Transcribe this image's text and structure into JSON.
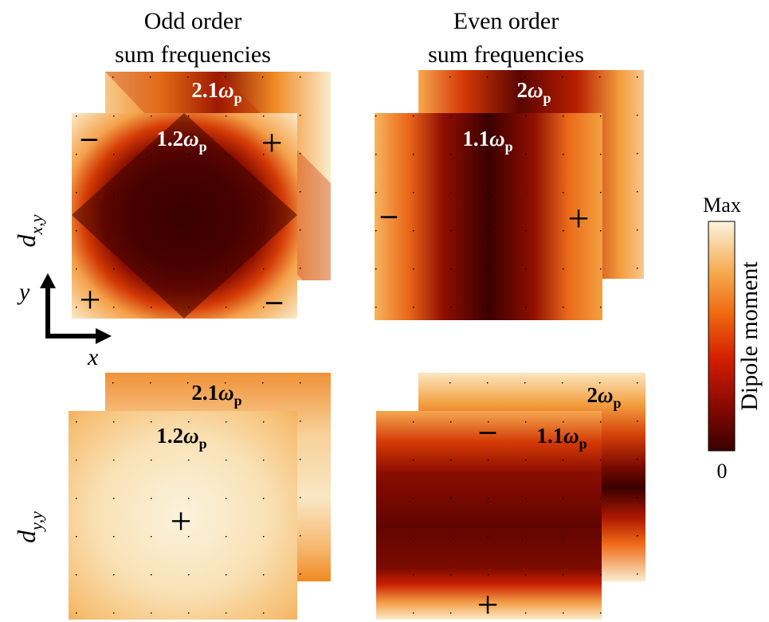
{
  "columns": {
    "odd": {
      "line1": "Odd order",
      "line2": "sum frequencies"
    },
    "even": {
      "line1": "Even order",
      "line2": "sum frequencies"
    }
  },
  "rows": {
    "top": {
      "symbol": "d",
      "subscript": "x,y"
    },
    "bottom": {
      "symbol": "d",
      "subscript": "y,y"
    }
  },
  "axes": {
    "x": "x",
    "y": "y"
  },
  "panels": {
    "top_odd_back": {
      "coef": "2.1",
      "omega": "ω",
      "sub": "p"
    },
    "top_odd_front": {
      "coef": "1.2",
      "omega": "ω",
      "sub": "p"
    },
    "top_even_back": {
      "coef": "2",
      "omega": "ω",
      "sub": "p"
    },
    "top_even_front": {
      "coef": "1.1",
      "omega": "ω",
      "sub": "p"
    },
    "bottom_odd_back": {
      "coef": "2.1",
      "omega": "ω",
      "sub": "p"
    },
    "bottom_odd_front": {
      "coef": "1.2",
      "omega": "ω",
      "sub": "p"
    },
    "bottom_even_back": {
      "coef": "2",
      "omega": "ω",
      "sub": "p"
    },
    "bottom_even_front": {
      "coef": "1.1",
      "omega": "ω",
      "sub": "p"
    }
  },
  "signs": {
    "plus": "+",
    "minus": "–"
  },
  "colorbar": {
    "label": "Dipole moment",
    "max": "Max",
    "min": "0"
  },
  "colors": {
    "darkest": "#3a0000",
    "dark": "#6e0700",
    "red": "#c81c00",
    "orange": "#f07a12",
    "light_orange": "#f6b45c",
    "pale": "#f9e3bb",
    "cream": "#fbf3dd"
  }
}
